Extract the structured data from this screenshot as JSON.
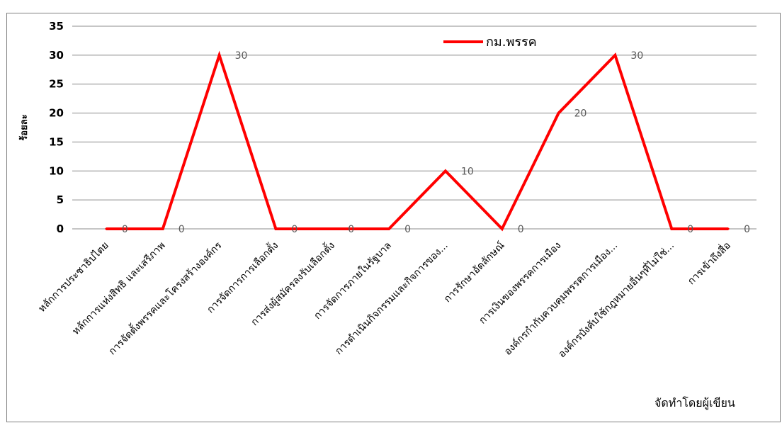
{
  "chart_data": {
    "type": "line",
    "title": "",
    "xlabel": "",
    "ylabel": "ร้อยละ",
    "ylim": [
      0,
      35
    ],
    "yticks": [
      0,
      5,
      10,
      15,
      20,
      25,
      30,
      35
    ],
    "grid": true,
    "legend_position": "top-right",
    "categories": [
      "หลักการประชาธิปไตย",
      "หลักการแห่งสิทธิ และเสรีภาพ",
      "การจัดตั้งพรรคและโครงสร้างองค์กร",
      "การจัดการการเลือกตั้ง",
      "การส่งผู้สมัครลงรับเลือกตั้ง",
      "การจัดการภายในรัฐบาล",
      "การดำเนินกิจกรรมและกิจการของ...",
      "การรักษาอัตลักษณ์",
      "การเงินของพรรคการเมือง",
      "องค์กรกำกับควบคุมพรรคการเมือง...",
      "องค์กรบังคับใช้กฎหมายอื่นๆที่ไม่ใช่...",
      "การเข้าถึงสื่อ"
    ],
    "series": [
      {
        "name": "กม.พรรค",
        "color": "#ff0000",
        "values": [
          0,
          0,
          30,
          0,
          0,
          0,
          10,
          0,
          20,
          30,
          0,
          0
        ]
      }
    ],
    "data_labels": [
      "0",
      "0",
      "30",
      "0",
      "0",
      "0",
      "10",
      "0",
      "20",
      "30",
      "0",
      "0"
    ],
    "annotation": "จัดทำโดยผู้เขียน"
  }
}
